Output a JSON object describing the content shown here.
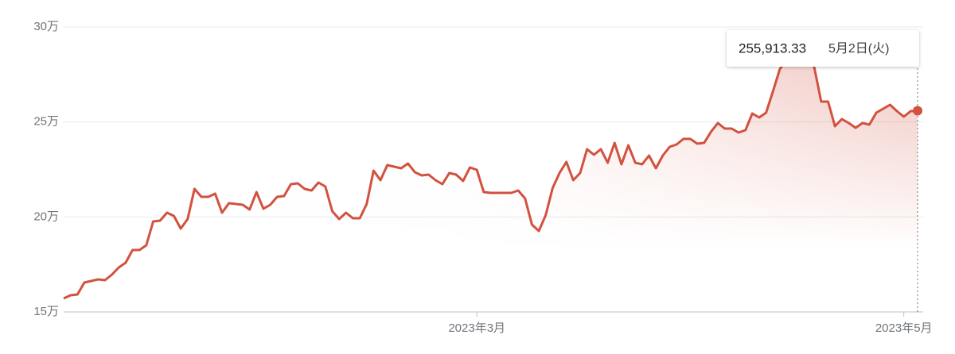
{
  "chart_data": {
    "type": "line",
    "color": "#d2513f",
    "xlim": [
      0,
      124
    ],
    "xticks": [
      {
        "value": 60,
        "label": "2023年3月"
      },
      {
        "value": 122,
        "label": "2023年5月"
      }
    ],
    "ylim": [
      150000,
      300000
    ],
    "yticks": [
      {
        "value": 150000,
        "label": "15万"
      },
      {
        "value": 200000,
        "label": "20万"
      },
      {
        "value": 250000,
        "label": "25万"
      },
      {
        "value": 300000,
        "label": "30万"
      }
    ],
    "grid": true,
    "values": [
      157100,
      158770,
      159190,
      165460,
      166300,
      167130,
      166710,
      169640,
      173400,
      175910,
      182590,
      182590,
      185100,
      197630,
      198050,
      202230,
      200560,
      193870,
      198890,
      214760,
      210590,
      210590,
      212260,
      202230,
      207240,
      206830,
      206410,
      203900,
      213090,
      204320,
      206410,
      210590,
      211000,
      217270,
      217690,
      214760,
      213930,
      218110,
      216020,
      203060,
      198890,
      202230,
      199300,
      199300,
      206830,
      224370,
      219360,
      227300,
      226460,
      225630,
      228130,
      223540,
      221870,
      222280,
      219360,
      217270,
      223120,
      222280,
      218940,
      226050,
      224790,
      213090,
      212670,
      212670,
      212670,
      212670,
      213930,
      209750,
      195960,
      192620,
      200980,
      215180,
      223120,
      228970,
      219360,
      223120,
      235660,
      232730,
      235660,
      228550,
      239000,
      227720,
      237740,
      228550,
      227720,
      232310,
      225630,
      232310,
      236910,
      238160,
      241090,
      241090,
      238580,
      239000,
      244850,
      249440,
      246520,
      246520,
      244430,
      245680,
      254460,
      252370,
      254880,
      266160,
      277860,
      282870,
      287050,
      289140,
      287050,
      278690,
      260730,
      260730,
      247770,
      251530,
      249440,
      246940,
      249440,
      248610,
      254880,
      256960,
      259050,
      255710,
      252790,
      255710,
      255913.33
    ],
    "tooltip": {
      "label": "255,913.33",
      "date": "5月2日(火)"
    }
  }
}
